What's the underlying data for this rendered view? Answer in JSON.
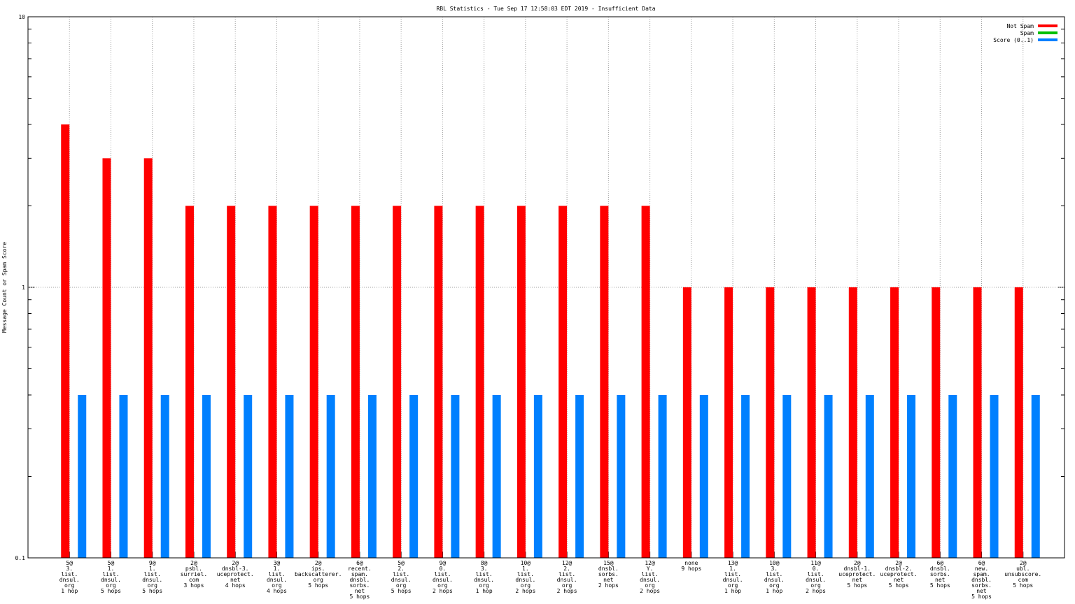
{
  "chart_data": {
    "type": "bar",
    "title": "RBL Statistics - Tue Sep 17 12:58:03 EDT 2019 - Insufficient Data",
    "y_label": "Message Count or Spam Score",
    "log_scale": true,
    "grid": true,
    "legend": "top right",
    "ylim": [
      0.1,
      10
    ],
    "yticks": [
      0.1,
      1,
      10
    ],
    "yminorticks": [
      0.2,
      0.3,
      0.4,
      0.5,
      0.6,
      0.7,
      0.8,
      0.9,
      2,
      3,
      4,
      5,
      6,
      7,
      8,
      9
    ],
    "categories": [
      [
        "5@",
        "3.",
        "list.",
        "dnsul.",
        "org",
        "1 hop"
      ],
      [
        "5@",
        "1.",
        "list.",
        "dnsul.",
        "org",
        "5 hops"
      ],
      [
        "9@",
        "1.",
        "list.",
        "dnsul.",
        "org",
        "5 hops"
      ],
      [
        "2@",
        "psbl.",
        "surriel.",
        "com",
        "3 hops"
      ],
      [
        "2@",
        "dnsbl-3.",
        "uceprotect.",
        "net",
        "4 hops"
      ],
      [
        "3@",
        "1.",
        "list.",
        "dnsul.",
        "org",
        "4 hops"
      ],
      [
        "2@",
        "ips.",
        "backscatterer.",
        "org",
        "5 hops"
      ],
      [
        "6@",
        "recent.",
        "spam.",
        "dnsbl.",
        "sorbs.",
        "net",
        "5 hops"
      ],
      [
        "5@",
        "2.",
        "list.",
        "dnsul.",
        "org",
        "5 hops"
      ],
      [
        "9@",
        "0.",
        "list.",
        "dnsul.",
        "org",
        "2 hops"
      ],
      [
        "8@",
        "3.",
        "list.",
        "dnsul.",
        "org",
        "1 hop"
      ],
      [
        "10@",
        "1.",
        "list.",
        "dnsul.",
        "org",
        "2 hops"
      ],
      [
        "12@",
        "2.",
        "list.",
        "dnsul.",
        "org",
        "2 hops"
      ],
      [
        "15@",
        "dnsbl.",
        "sorbs.",
        "net",
        "2 hops"
      ],
      [
        "12@",
        "Y.",
        "list.",
        "dnsul.",
        "org",
        "2 hops"
      ],
      [
        "none",
        "9 hops"
      ],
      [
        "13@",
        "1.",
        "list.",
        "dnsul.",
        "org",
        "1 hop"
      ],
      [
        "10@",
        "3.",
        "list.",
        "dnsul.",
        "org",
        "1 hop"
      ],
      [
        "11@",
        "0.",
        "list.",
        "dnsul.",
        "org",
        "2 hops"
      ],
      [
        "2@",
        "dnsbl-1.",
        "uceprotect.",
        "net",
        "5 hops"
      ],
      [
        "2@",
        "dnsbl-2.",
        "uceprotect.",
        "net",
        "5 hops"
      ],
      [
        "6@",
        "dnsbl.",
        "sorbs.",
        "net",
        "5 hops"
      ],
      [
        "6@",
        "new.",
        "spam.",
        "dnsbl.",
        "sorbs.",
        "net",
        "5 hops"
      ],
      [
        "2@",
        "ubl.",
        "unsubscore.",
        "com",
        "5 hops"
      ]
    ],
    "series": [
      {
        "name": "Not Spam",
        "color": "#ff0000",
        "values": [
          4,
          3,
          3,
          2,
          2,
          2,
          2,
          2,
          2,
          2,
          2,
          2,
          2,
          2,
          2,
          1,
          1,
          1,
          1,
          1,
          1,
          1,
          1,
          1
        ]
      },
      {
        "name": "Spam",
        "color": "#00c000",
        "values": [
          null,
          null,
          null,
          null,
          null,
          null,
          null,
          null,
          null,
          null,
          null,
          null,
          null,
          null,
          null,
          null,
          null,
          null,
          null,
          null,
          null,
          null,
          null,
          null
        ]
      },
      {
        "name": "Score (0..1)",
        "color": "#0080ff",
        "values": [
          0.4,
          0.4,
          0.4,
          0.4,
          0.4,
          0.4,
          0.4,
          0.4,
          0.4,
          0.4,
          0.4,
          0.4,
          0.4,
          0.4,
          0.4,
          0.4,
          0.4,
          0.4,
          0.4,
          0.4,
          0.4,
          0.4,
          0.4,
          0.4
        ]
      }
    ]
  }
}
